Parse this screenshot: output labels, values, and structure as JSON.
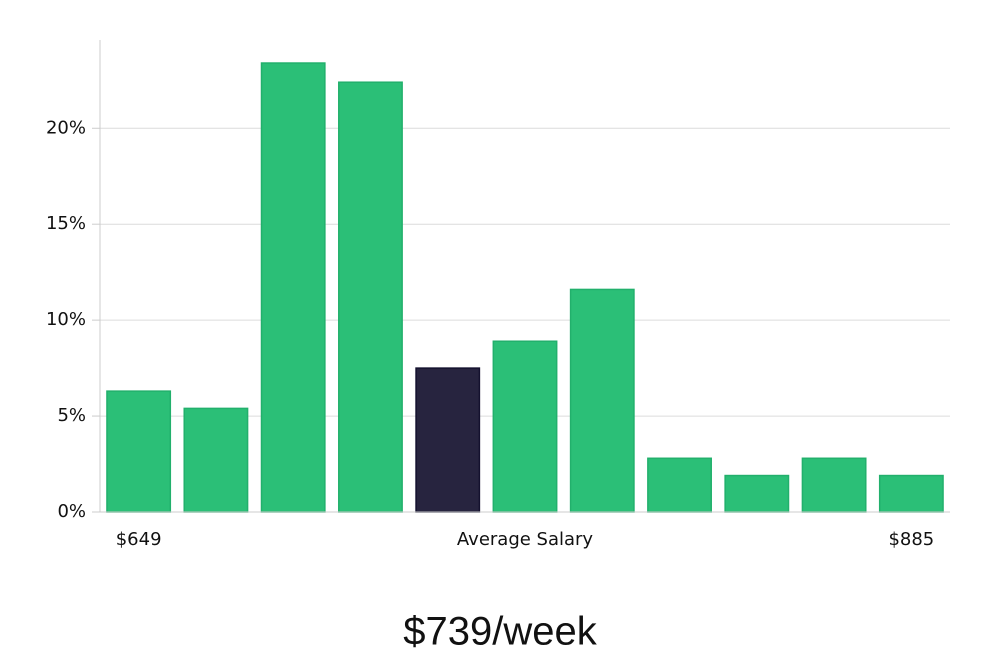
{
  "chart_data": {
    "type": "bar",
    "categories": [
      "$649",
      null,
      null,
      null,
      null,
      null,
      null,
      null,
      null,
      null,
      "$885"
    ],
    "values": [
      6.3,
      5.4,
      23.4,
      22.4,
      7.5,
      8.9,
      11.6,
      2.8,
      1.9,
      2.8,
      1.9
    ],
    "colors": [
      "#2bbf77",
      "#2bbf77",
      "#2bbf77",
      "#2bbf77",
      "#27243f",
      "#2bbf77",
      "#2bbf77",
      "#2bbf77",
      "#2bbf77",
      "#2bbf77",
      "#2bbf77"
    ],
    "ylim": [
      0,
      24.6
    ],
    "yticks": [
      {
        "value": 0,
        "label": "0%"
      },
      {
        "value": 5,
        "label": "5%"
      },
      {
        "value": 10,
        "label": "10%"
      },
      {
        "value": 15,
        "label": "15%"
      },
      {
        "value": 20,
        "label": "20%"
      }
    ],
    "grid": true,
    "xlabel": "Average Salary",
    "subtitle": "$739/week"
  }
}
